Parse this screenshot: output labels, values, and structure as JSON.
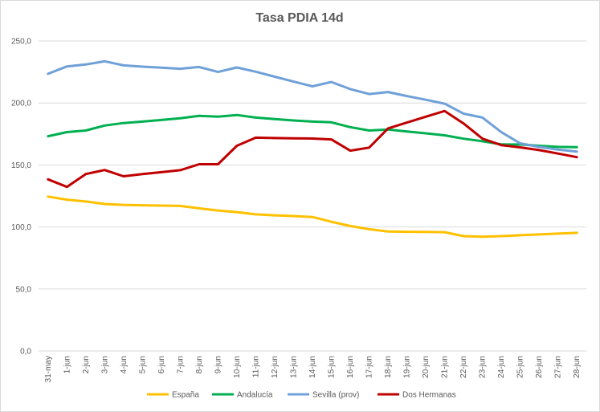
{
  "chart_data": {
    "type": "line",
    "title": "Tasa PDIA 14d",
    "xlabel": "",
    "ylabel": "",
    "ylim": [
      0,
      250
    ],
    "yticks": [
      0,
      50,
      100,
      150,
      200,
      250
    ],
    "ytick_labels": [
      "0,0",
      "50,0",
      "100,0",
      "150,0",
      "200,0",
      "250,0"
    ],
    "grid": true,
    "legend_position": "bottom",
    "categories": [
      "31-may",
      "1-jun",
      "2-jun",
      "3-jun",
      "4-jun",
      "5-jun",
      "6-jun",
      "7-jun",
      "8-jun",
      "9-jun",
      "10-jun",
      "11-jun",
      "12-jun",
      "13-jun",
      "14-jun",
      "15-jun",
      "16-jun",
      "17-jun",
      "18-jun",
      "19-jun",
      "20-jun",
      "21-jun",
      "22-jun",
      "23-jun",
      "24-jun",
      "25-jun",
      "26-jun",
      "27-jun",
      "28-jun"
    ],
    "series": [
      {
        "name": "España",
        "color": "#ffc000",
        "values": [
          124.5,
          122,
          120.5,
          118.5,
          117.8,
          117.5,
          117.2,
          117,
          115,
          113.3,
          112,
          110.2,
          109.4,
          108.8,
          108,
          104.2,
          100.8,
          98.2,
          96.4,
          96.1,
          96,
          95.8,
          92.6,
          92.1,
          92.6,
          93.3,
          94,
          94.6,
          95.3
        ]
      },
      {
        "name": "Andalucía",
        "color": "#00b050",
        "values": [
          173.2,
          176.5,
          177.8,
          181.8,
          183.8,
          185,
          186.3,
          187.6,
          189.6,
          188.9,
          190.3,
          188.2,
          187,
          185.9,
          185,
          184.4,
          180.5,
          177.8,
          178.6,
          177,
          175.5,
          173.9,
          171.2,
          169.1,
          166.6,
          166.5,
          165.5,
          164.6,
          164.3
        ]
      },
      {
        "name": "Sevilla (prov)",
        "color": "#6fa0d8",
        "values": [
          223.5,
          229.5,
          231,
          233.6,
          230.3,
          229.3,
          228.5,
          227.6,
          229,
          225,
          228.6,
          225.2,
          221.2,
          217.2,
          213.4,
          216.9,
          211.2,
          207.2,
          208.8,
          205.6,
          202.6,
          199.4,
          191.4,
          188.2,
          176.4,
          167.4,
          164.6,
          162.4,
          160.8
        ]
      },
      {
        "name": "Dos Hermanas",
        "color": "#c00000",
        "values": [
          138.4,
          132.3,
          142.7,
          145.9,
          140.9,
          142.6,
          144.2,
          145.8,
          150.6,
          150.6,
          165.5,
          172,
          171.7,
          171.5,
          171.3,
          170.6,
          161.5,
          164,
          179.5,
          184.2,
          188.9,
          193.5,
          183.5,
          171.2,
          166,
          164.2,
          162,
          159.2,
          156.3
        ]
      }
    ]
  }
}
